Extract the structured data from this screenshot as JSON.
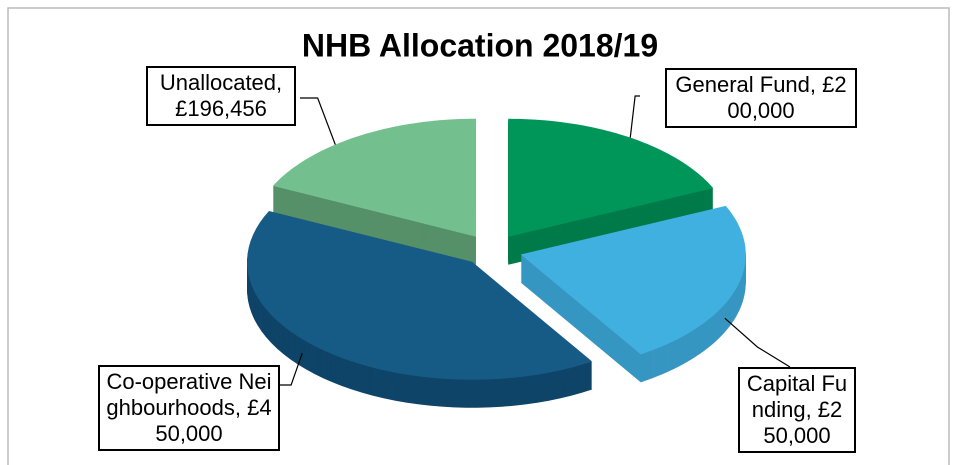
{
  "chart_data": {
    "type": "pie",
    "title": "NHB Allocation 2018/19",
    "categories": [
      "General Fund",
      "Capital Funding",
      "Co-operative Neighbourhoods",
      "Unallocated"
    ],
    "values": [
      200000,
      250000,
      450000,
      196456
    ],
    "value_labels": [
      "£200,000",
      "£250,000",
      "£450,000",
      "£196,456"
    ],
    "colors": [
      "#00965a",
      "#3fb0e0",
      "#165a86",
      "#74bf8e"
    ],
    "side_colors": [
      "#007a48",
      "#3796c2",
      "#0f4468",
      "#559068"
    ]
  }
}
